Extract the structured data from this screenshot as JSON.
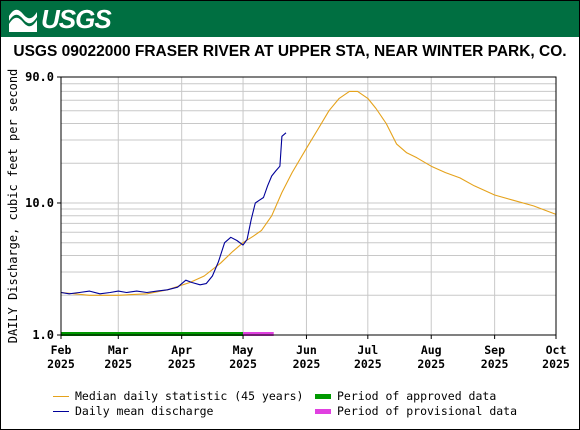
{
  "header": {
    "logo_text": "USGS",
    "logo_icon": "usgs-wave-icon",
    "banner_color": "#006f41"
  },
  "chart_data": {
    "type": "line",
    "title": "USGS 09022000 FRASER RIVER AT UPPER STA, NEAR WINTER PARK, CO.",
    "ylabel": "DAILY Discharge, cubic feet per second",
    "xlabel": "",
    "yscale": "log",
    "ylim": [
      1.0,
      90.0
    ],
    "y_ticks": [
      "1.0",
      "10.0",
      "90.0"
    ],
    "x_domain": [
      "2025-02-01",
      "2025-10-01"
    ],
    "x_ticks": [
      {
        "date": "2025-02-01",
        "month": "Feb",
        "year": "2025"
      },
      {
        "date": "2025-03-01",
        "month": "Mar",
        "year": "2025"
      },
      {
        "date": "2025-04-01",
        "month": "Apr",
        "year": "2025"
      },
      {
        "date": "2025-05-01",
        "month": "May",
        "year": "2025"
      },
      {
        "date": "2025-06-01",
        "month": "Jun",
        "year": "2025"
      },
      {
        "date": "2025-07-01",
        "month": "Jul",
        "year": "2025"
      },
      {
        "date": "2025-08-01",
        "month": "Aug",
        "year": "2025"
      },
      {
        "date": "2025-09-01",
        "month": "Sep",
        "year": "2025"
      },
      {
        "date": "2025-10-01",
        "month": "Oct",
        "year": "2025"
      }
    ],
    "grid": true,
    "legend_position": "bottom",
    "series": [
      {
        "name": "Median daily statistic (45 years)",
        "color": "#e5a21b",
        "points": [
          [
            "2025-02-01",
            2.1
          ],
          [
            "2025-02-15",
            2.0
          ],
          [
            "2025-03-01",
            2.0
          ],
          [
            "2025-03-15",
            2.05
          ],
          [
            "2025-03-25",
            2.2
          ],
          [
            "2025-04-05",
            2.5
          ],
          [
            "2025-04-12",
            2.8
          ],
          [
            "2025-04-20",
            3.5
          ],
          [
            "2025-04-26",
            4.3
          ],
          [
            "2025-05-01",
            5.0
          ],
          [
            "2025-05-06",
            5.6
          ],
          [
            "2025-05-10",
            6.2
          ],
          [
            "2025-05-15",
            8.0
          ],
          [
            "2025-05-20",
            12.0
          ],
          [
            "2025-05-25",
            17.0
          ],
          [
            "2025-06-01",
            26.0
          ],
          [
            "2025-06-07",
            37.0
          ],
          [
            "2025-06-12",
            50.0
          ],
          [
            "2025-06-17",
            62.0
          ],
          [
            "2025-06-22",
            70.0
          ],
          [
            "2025-06-26",
            70.0
          ],
          [
            "2025-07-01",
            62.0
          ],
          [
            "2025-07-05",
            52.0
          ],
          [
            "2025-07-10",
            40.0
          ],
          [
            "2025-07-15",
            28.0
          ],
          [
            "2025-07-20",
            24.0
          ],
          [
            "2025-07-25",
            22.0
          ],
          [
            "2025-08-01",
            19.0
          ],
          [
            "2025-08-08",
            17.0
          ],
          [
            "2025-08-15",
            15.5
          ],
          [
            "2025-08-22",
            13.5
          ],
          [
            "2025-09-01",
            11.5
          ],
          [
            "2025-09-10",
            10.5
          ],
          [
            "2025-09-20",
            9.5
          ],
          [
            "2025-10-01",
            8.2
          ]
        ]
      },
      {
        "name": "Daily mean discharge",
        "color": "#000099",
        "points": [
          [
            "2025-02-01",
            2.1
          ],
          [
            "2025-02-05",
            2.05
          ],
          [
            "2025-02-10",
            2.1
          ],
          [
            "2025-02-15",
            2.15
          ],
          [
            "2025-02-20",
            2.05
          ],
          [
            "2025-02-25",
            2.1
          ],
          [
            "2025-03-01",
            2.15
          ],
          [
            "2025-03-05",
            2.1
          ],
          [
            "2025-03-10",
            2.15
          ],
          [
            "2025-03-15",
            2.1
          ],
          [
            "2025-03-20",
            2.15
          ],
          [
            "2025-03-25",
            2.2
          ],
          [
            "2025-03-30",
            2.3
          ],
          [
            "2025-04-03",
            2.6
          ],
          [
            "2025-04-06",
            2.5
          ],
          [
            "2025-04-10",
            2.4
          ],
          [
            "2025-04-13",
            2.45
          ],
          [
            "2025-04-16",
            2.8
          ],
          [
            "2025-04-19",
            3.6
          ],
          [
            "2025-04-22",
            5.0
          ],
          [
            "2025-04-25",
            5.5
          ],
          [
            "2025-04-28",
            5.2
          ],
          [
            "2025-05-01",
            4.8
          ],
          [
            "2025-05-03",
            5.3
          ],
          [
            "2025-05-05",
            7.5
          ],
          [
            "2025-05-07",
            10.0
          ],
          [
            "2025-05-09",
            10.5
          ],
          [
            "2025-05-11",
            11.0
          ],
          [
            "2025-05-13",
            13.5
          ],
          [
            "2025-05-15",
            16.0
          ],
          [
            "2025-05-17",
            17.5
          ],
          [
            "2025-05-19",
            19.0
          ],
          [
            "2025-05-20",
            32.0
          ],
          [
            "2025-05-22",
            34.0
          ]
        ]
      }
    ],
    "approval_bars": [
      {
        "name": "Period of approved data",
        "color": "#009900",
        "start": "2025-02-01",
        "end": "2025-05-01"
      },
      {
        "name": "Period of provisional data",
        "color": "#e040e0",
        "start": "2025-05-01",
        "end": "2025-05-16"
      }
    ]
  }
}
